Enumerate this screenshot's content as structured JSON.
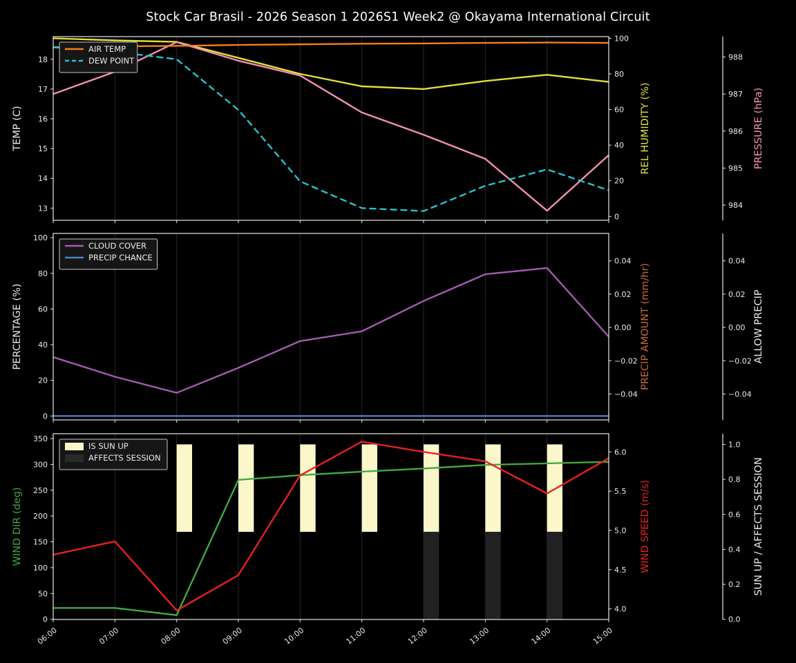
{
  "title": "Stock Car Brasil - 2026 Season 1 2026S1 Week2 @ Okayama International Circuit",
  "colors": {
    "background": "#000000",
    "foreground": "#eaeaea",
    "grid": "#282828",
    "air_temp": "#f28118",
    "dew_point": "#25c4cd",
    "rel_humidity": "#e2e03b",
    "pressure": "#f58fb8",
    "cloud_cover": "#a35cb0",
    "precip_chance": "#4c83c3",
    "precip_amount": "#c76a3b",
    "wind_dir": "#43a843",
    "wind_speed": "#e82020",
    "sun_up_bar": "#fbf7cb",
    "affects_bar": "#232323"
  },
  "chart_data": [
    {
      "type": "line",
      "name": "temperature",
      "x_range": [
        6,
        15
      ],
      "axes": {
        "left": {
          "label": "TEMP (C)",
          "color": "#eaeaea",
          "ylim": [
            12.59,
            18.76
          ],
          "ticks": [
            [
              13,
              "13"
            ],
            [
              14,
              "14"
            ],
            [
              15,
              "15"
            ],
            [
              16,
              "16"
            ],
            [
              17,
              "17"
            ],
            [
              18,
              "18"
            ]
          ]
        },
        "right": {
          "label": "REL HUMIDITY (%)",
          "color": "#e2e03b",
          "ylim": [
            -2.2,
            100.93
          ],
          "ticks": [
            [
              0,
              "0"
            ],
            [
              20,
              "20"
            ],
            [
              40,
              "40"
            ],
            [
              60,
              "60"
            ],
            [
              80,
              "80"
            ],
            [
              100,
              "100"
            ]
          ]
        },
        "far_right": {
          "label": "PRESSURE (hPa)",
          "color": "#f58fb8",
          "ylim": [
            983.59,
            988.55
          ],
          "ticks": [
            [
              984,
              "984"
            ],
            [
              985,
              "985"
            ],
            [
              986,
              "986"
            ],
            [
              987,
              "987"
            ],
            [
              988,
              "988"
            ]
          ]
        }
      },
      "legend": [
        {
          "label": "AIR TEMP",
          "color": "#f28118",
          "style": "line"
        },
        {
          "label": "DEW POINT",
          "color": "#25c4cd",
          "style": "dashed"
        }
      ],
      "series": [
        {
          "name": "rel-humidity",
          "axis": "right",
          "color": "#e2e03b",
          "style": "solid",
          "values": [
            100,
            98.8,
            98,
            89,
            80,
            73,
            71.5,
            76,
            79.5,
            75.5
          ]
        },
        {
          "name": "pressure",
          "axis": "far_right",
          "color": "#f58fb8",
          "style": "solid",
          "values": [
            987.0,
            987.6,
            988.4,
            987.9,
            987.5,
            986.5,
            985.9,
            985.25,
            983.85,
            985.35
          ]
        },
        {
          "name": "air-temp",
          "axis": "left",
          "color": "#f28118",
          "style": "solid",
          "values": [
            18.4,
            18.43,
            18.45,
            18.48,
            18.5,
            18.52,
            18.53,
            18.55,
            18.56,
            18.55
          ]
        },
        {
          "name": "dew-point",
          "axis": "left",
          "color": "#25c4cd",
          "style": "dashed",
          "values": [
            18.4,
            18.25,
            18.0,
            16.3,
            13.9,
            13.0,
            12.9,
            13.75,
            14.3,
            13.6
          ]
        }
      ]
    },
    {
      "type": "line",
      "name": "precipitation",
      "x_range": [
        6,
        15
      ],
      "axes": {
        "left": {
          "label": "PERCENTAGE (%)",
          "color": "#eaeaea",
          "ylim": [
            -2.2,
            102.4
          ],
          "ticks": [
            [
              0,
              "0"
            ],
            [
              20,
              "20"
            ],
            [
              40,
              "40"
            ],
            [
              60,
              "60"
            ],
            [
              80,
              "80"
            ],
            [
              100,
              "100"
            ]
          ]
        },
        "right": {
          "label": "PRECIP AMOUNT (mm/hr)",
          "color": "#c76a3b",
          "ylim": [
            -0.0556,
            0.0565
          ],
          "ticks": [
            [
              0.04,
              "0.04"
            ],
            [
              0.02,
              "0.02"
            ],
            [
              0,
              "0.00"
            ],
            [
              -0.02,
              "−0.02"
            ],
            [
              -0.04,
              "−0.04"
            ]
          ]
        },
        "far_right": {
          "label": "ALLOW PRECIP",
          "color": "#eaeaea",
          "ylim": [
            -0.0556,
            0.0565
          ],
          "ticks": [
            [
              0.04,
              "0.04"
            ],
            [
              0.02,
              "0.02"
            ],
            [
              0,
              "0.00"
            ],
            [
              -0.02,
              "−0.02"
            ],
            [
              -0.04,
              "−0.04"
            ]
          ]
        }
      },
      "legend": [
        {
          "label": "CLOUD COVER",
          "color": "#a35cb0",
          "style": "line"
        },
        {
          "label": "PRECIP CHANCE",
          "color": "#4c83c3",
          "style": "line"
        }
      ],
      "series": [
        {
          "name": "cloud-cover",
          "axis": "left",
          "color": "#a35cb0",
          "style": "solid",
          "values": [
            33,
            22,
            13,
            27,
            42,
            47.5,
            64.5,
            79.5,
            83,
            44.5
          ]
        },
        {
          "name": "precip-chance",
          "axis": "left",
          "color": "#4c83c3",
          "style": "solid",
          "values": [
            0,
            0,
            0,
            0,
            0,
            0,
            0,
            0,
            0,
            0
          ]
        }
      ]
    },
    {
      "type": "line",
      "name": "wind",
      "x_range": [
        6,
        15
      ],
      "x_labels": [
        "06:00",
        "07:00",
        "08:00",
        "09:00",
        "10:00",
        "11:00",
        "12:00",
        "13:00",
        "14:00",
        "15:00"
      ],
      "axes": {
        "left": {
          "label": "WIND DIR (deg)",
          "color": "#43a843",
          "ylim": [
            -0.4,
            359.4
          ],
          "ticks": [
            [
              0,
              "0"
            ],
            [
              50,
              "50"
            ],
            [
              100,
              "100"
            ],
            [
              150,
              "150"
            ],
            [
              200,
              "200"
            ],
            [
              250,
              "250"
            ],
            [
              300,
              "300"
            ],
            [
              350,
              "350"
            ]
          ]
        },
        "right": {
          "label": "WIND SPEED (m/s)",
          "color": "#e82020",
          "ylim": [
            3.865,
            6.231
          ],
          "ticks": [
            [
              4.0,
              "4.0"
            ],
            [
              4.5,
              "4.5"
            ],
            [
              5.0,
              "5.0"
            ],
            [
              5.5,
              "5.5"
            ],
            [
              6.0,
              "6.0"
            ]
          ]
        },
        "far_right": {
          "label": "SUN UP / AFFECTS SESSION",
          "color": "#eaeaea",
          "ylim": [
            -0.001,
            1.061
          ],
          "ticks": [
            [
              0,
              "0.0"
            ],
            [
              0.2,
              "0.2"
            ],
            [
              0.4,
              "0.4"
            ],
            [
              0.6,
              "0.6"
            ],
            [
              0.8,
              "0.8"
            ],
            [
              1.0,
              "1.0"
            ]
          ]
        }
      },
      "legend": [
        {
          "label": "IS SUN UP",
          "color": "#fbf7cb",
          "style": "patch"
        },
        {
          "label": "AFFECTS SESSION",
          "color": "#2a2a2a",
          "style": "patch"
        }
      ],
      "bars": [
        {
          "name": "is-sun-up",
          "axis": "far_right",
          "color": "#fbf7cb",
          "hours": [
            8,
            9,
            10,
            11,
            12,
            13,
            14
          ],
          "from": 0.5,
          "to": 1.0
        },
        {
          "name": "affects-session",
          "axis": "far_right",
          "color": "#212121",
          "hours": [
            12,
            13,
            14
          ],
          "from": 0.0,
          "to": 0.5
        }
      ],
      "series": [
        {
          "name": "wind-dir",
          "axis": "left",
          "color": "#43a843",
          "style": "solid",
          "values": [
            22,
            22,
            8,
            270,
            279,
            286,
            292,
            299,
            302,
            305
          ]
        },
        {
          "name": "wind-speed",
          "axis": "right",
          "color": "#e82020",
          "style": "solid",
          "values": [
            4.69,
            4.86,
            3.98,
            4.43,
            5.7,
            6.13,
            6.0,
            5.88,
            5.47,
            5.92
          ]
        }
      ]
    }
  ]
}
